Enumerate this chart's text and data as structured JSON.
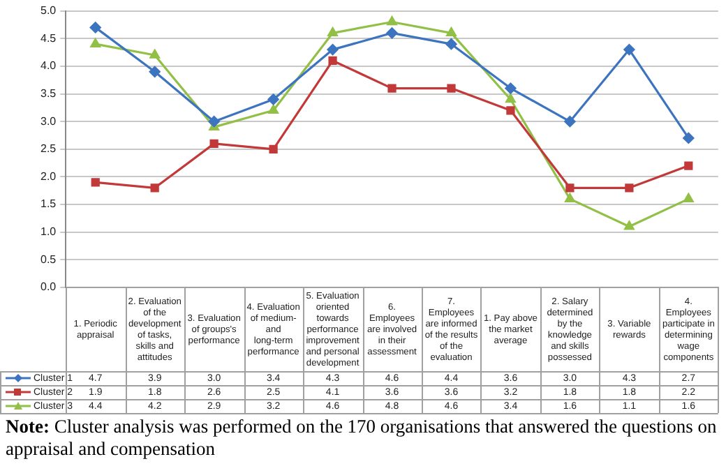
{
  "chart_data": {
    "type": "line",
    "categories": [
      "1. Periodic appraisal",
      "2. Evaluation of the development of tasks, skills and attitudes",
      "3. Evaluation of groups's performance",
      "4. Evaluation of medium- and long-term performance",
      "5. Evaluation oriented towards performance improvement and personal development",
      "6. Employees are involved in their assessment",
      "7. Employees are informed of the results of the evaluation",
      "1. Pay above the market average",
      "2. Salary determined by the knowledge and skills possessed",
      "3. Variable rewards",
      "4. Employees participate in determining wage components"
    ],
    "series": [
      {
        "name": "Cluster 1",
        "color": "#3d74c0",
        "marker": "diamond",
        "values": [
          4.7,
          3.9,
          3.0,
          3.4,
          4.3,
          4.6,
          4.4,
          3.6,
          3.0,
          4.3,
          2.7
        ],
        "value_labels": [
          "4.7",
          "3.9",
          "3.0",
          "3.4",
          "4.3",
          "4.6",
          "4.4",
          "3.6",
          "3.0",
          "4.3",
          "2.7"
        ]
      },
      {
        "name": "Cluster 2",
        "color": "#c2393a",
        "marker": "square",
        "values": [
          1.9,
          1.8,
          2.6,
          2.5,
          4.1,
          3.6,
          3.6,
          3.2,
          1.8,
          1.8,
          2.2
        ],
        "value_labels": [
          "1.9",
          "1.8",
          "2.6",
          "2.5",
          "4.1",
          "3.6",
          "3.6",
          "3.2",
          "1.8",
          "1.8",
          "2.2"
        ]
      },
      {
        "name": "Cluster 3",
        "color": "#92c047",
        "marker": "triangle",
        "values": [
          4.4,
          4.2,
          2.9,
          3.2,
          4.6,
          4.8,
          4.6,
          3.4,
          1.6,
          1.1,
          1.6
        ],
        "value_labels": [
          "4.4",
          "4.2",
          "2.9",
          "3.2",
          "4.6",
          "4.8",
          "4.6",
          "3.4",
          "1.6",
          "1.1",
          "1.6"
        ]
      }
    ],
    "ylim": [
      0,
      5
    ],
    "yticks": [
      {
        "value": 0,
        "label": "0.0"
      },
      {
        "value": 0.5,
        "label": "0.5"
      },
      {
        "value": 1,
        "label": "1.0"
      },
      {
        "value": 1.5,
        "label": "1.5"
      },
      {
        "value": 2,
        "label": "2.0"
      },
      {
        "value": 2.5,
        "label": "2.5"
      },
      {
        "value": 3,
        "label": "3.0"
      },
      {
        "value": 3.5,
        "label": "3.5"
      },
      {
        "value": 4,
        "label": "4.0"
      },
      {
        "value": 4.5,
        "label": "4.5"
      },
      {
        "value": 5,
        "label": "5.0"
      }
    ],
    "grid": "y",
    "legend": "bottom left",
    "line_style": "solid",
    "annotations": [
      "Note: Cluster analysis was performed on the 170 organisations that answered the questions on appraisal and compensation"
    ]
  }
}
